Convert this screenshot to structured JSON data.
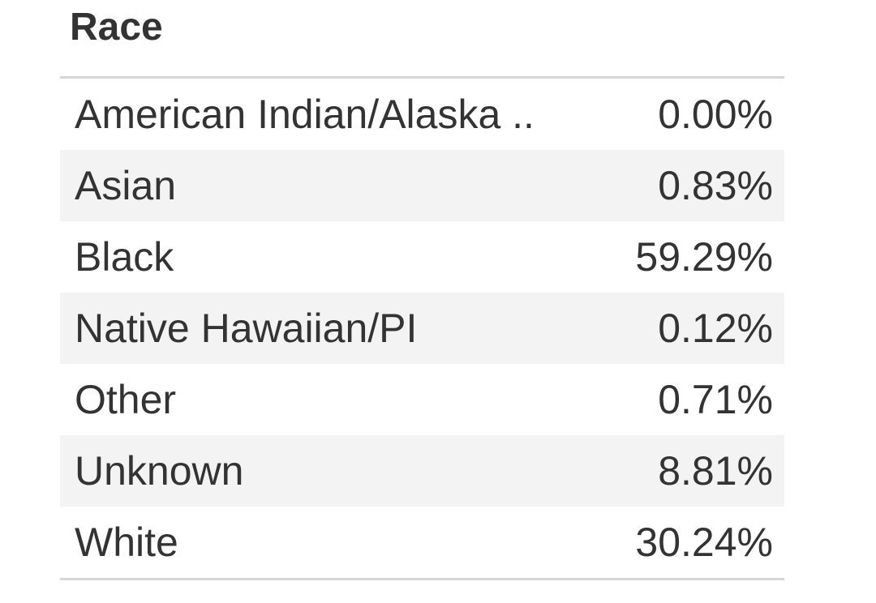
{
  "table": {
    "title": "Race",
    "rows": [
      {
        "label": "American Indian/Alaska ..",
        "value": "0.00%"
      },
      {
        "label": "Asian",
        "value": "0.83%"
      },
      {
        "label": "Black",
        "value": "59.29%"
      },
      {
        "label": "Native Hawaiian/PI",
        "value": "0.12%"
      },
      {
        "label": "Other",
        "value": "0.71%"
      },
      {
        "label": "Unknown",
        "value": "8.81%"
      },
      {
        "label": "White",
        "value": "30.24%"
      }
    ]
  },
  "colors": {
    "text": "#333333",
    "stripe": "#f3f3f3",
    "rule": "#d6d6d6"
  }
}
